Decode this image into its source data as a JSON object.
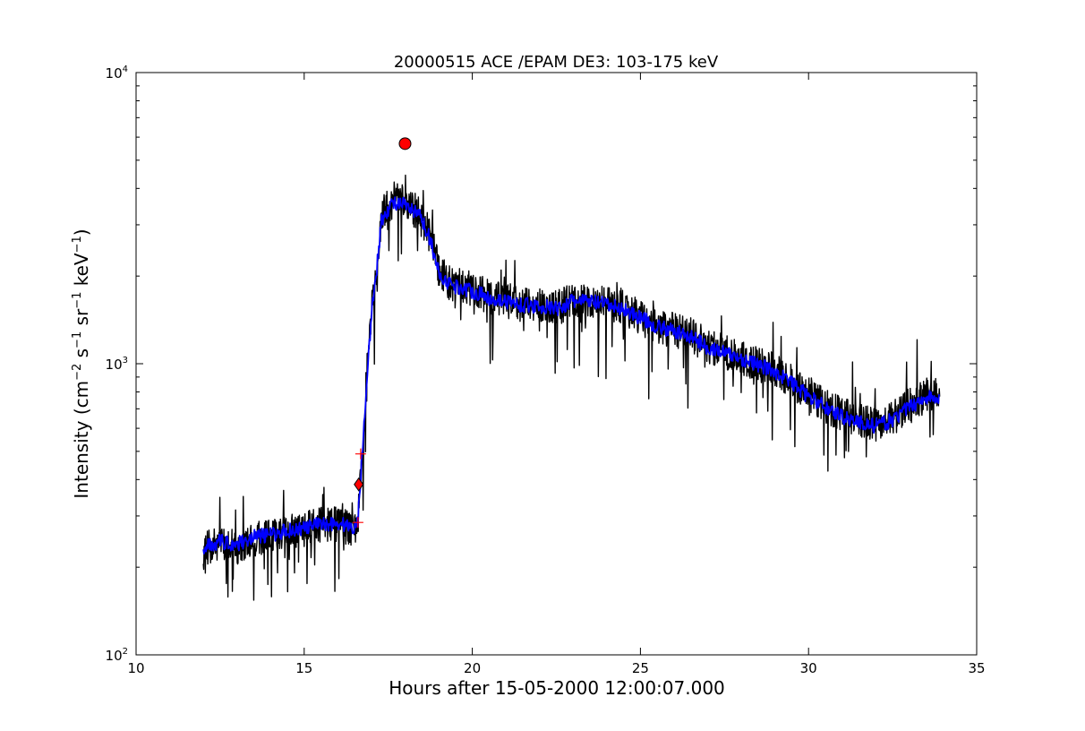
{
  "chart_data": {
    "type": "line",
    "title": "20000515 ACE /EPAM DE3: 103-175 keV",
    "xlabel": "Hours after 15-05-2000 12:00:07.000",
    "ylabel_main": "Intensity (cm",
    "ylabel_sup1": "−2",
    "ylabel_mid1": " s",
    "ylabel_sup2": "−1",
    "ylabel_mid2": " sr",
    "ylabel_sup3": "−1",
    "ylabel_mid3": " keV",
    "ylabel_sup4": "−1",
    "ylabel_end": ")",
    "xlim": [
      10,
      35
    ],
    "ylim": [
      100,
      10000
    ],
    "yscale": "log",
    "grid": false,
    "xticks": [
      {
        "value": 10,
        "label": "10"
      },
      {
        "value": 15,
        "label": "15"
      },
      {
        "value": 20,
        "label": "20"
      },
      {
        "value": 25,
        "label": "25"
      },
      {
        "value": 30,
        "label": "30"
      },
      {
        "value": 35,
        "label": "35"
      }
    ],
    "yticks": [
      {
        "value": 100,
        "base": "10",
        "exp": "2"
      },
      {
        "value": 1000,
        "base": "10",
        "exp": "3"
      },
      {
        "value": 10000,
        "base": "10",
        "exp": "4"
      }
    ],
    "colors": {
      "raw": "#000000",
      "smoothed": "#0000ff",
      "marker": "#ff0000"
    },
    "series": [
      {
        "id": "raw",
        "x": [
          12.0,
          12.5,
          13.0,
          13.5,
          14.0,
          14.5,
          15.0,
          15.5,
          16.0,
          16.3,
          16.5,
          16.6,
          16.7,
          16.8,
          16.9,
          17.0,
          17.1,
          17.2,
          17.3,
          17.5,
          17.7,
          17.9,
          18.0,
          18.2,
          18.4,
          18.6,
          18.8,
          19.0,
          19.3,
          19.6,
          20.0,
          20.5,
          21.0,
          21.5,
          22.0,
          22.5,
          23.0,
          23.5,
          24.0,
          24.5,
          25.0,
          25.5,
          26.0,
          26.5,
          27.0,
          27.5,
          28.0,
          28.5,
          29.0,
          29.5,
          30.0,
          30.5,
          31.0,
          31.5,
          32.0,
          32.5,
          33.0,
          33.5,
          33.9
        ],
        "y": [
          230,
          240,
          235,
          250,
          255,
          265,
          270,
          280,
          280,
          275,
          270,
          290,
          450,
          700,
          1100,
          1500,
          1900,
          2400,
          3200,
          3500,
          3700,
          3600,
          3600,
          3400,
          3300,
          3000,
          2600,
          2100,
          1900,
          1850,
          1800,
          1700,
          1650,
          1600,
          1600,
          1550,
          1650,
          1650,
          1600,
          1550,
          1450,
          1350,
          1300,
          1250,
          1150,
          1100,
          1050,
          1000,
          950,
          870,
          780,
          720,
          670,
          640,
          620,
          650,
          720,
          780,
          760
        ]
      },
      {
        "id": "smoothed",
        "x": [
          12.0,
          12.5,
          13.0,
          13.5,
          14.0,
          14.5,
          15.0,
          15.5,
          16.0,
          16.3,
          16.5,
          16.6,
          16.7,
          16.8,
          16.9,
          17.0,
          17.1,
          17.2,
          17.3,
          17.5,
          17.7,
          17.9,
          18.0,
          18.2,
          18.4,
          18.6,
          18.8,
          19.0,
          19.3,
          19.6,
          20.0,
          20.5,
          21.0,
          21.5,
          22.0,
          22.5,
          23.0,
          23.5,
          24.0,
          24.5,
          25.0,
          25.5,
          26.0,
          26.5,
          27.0,
          27.5,
          28.0,
          28.5,
          29.0,
          29.5,
          30.0,
          30.5,
          31.0,
          31.5,
          32.0,
          32.5,
          33.0,
          33.5,
          33.9
        ],
        "y": [
          235,
          245,
          240,
          255,
          258,
          268,
          272,
          282,
          283,
          278,
          272,
          292,
          440,
          680,
          1050,
          1450,
          1850,
          2350,
          3100,
          3400,
          3600,
          3500,
          3500,
          3350,
          3250,
          2950,
          2550,
          2050,
          1880,
          1830,
          1780,
          1680,
          1640,
          1590,
          1580,
          1540,
          1640,
          1640,
          1590,
          1540,
          1440,
          1340,
          1290,
          1240,
          1140,
          1090,
          1040,
          990,
          940,
          860,
          770,
          710,
          660,
          630,
          610,
          640,
          710,
          770,
          750
        ]
      }
    ],
    "markers": [
      {
        "name": "onset-diamond",
        "x": 16.62,
        "y": 385,
        "shape": "diamond"
      },
      {
        "name": "peak-circle",
        "x": 18.0,
        "y": 5700,
        "shape": "circle"
      },
      {
        "name": "plus-lower",
        "x": 16.6,
        "y": 285,
        "shape": "plus"
      },
      {
        "name": "plus-upper",
        "x": 16.68,
        "y": 490,
        "shape": "plus"
      }
    ]
  }
}
